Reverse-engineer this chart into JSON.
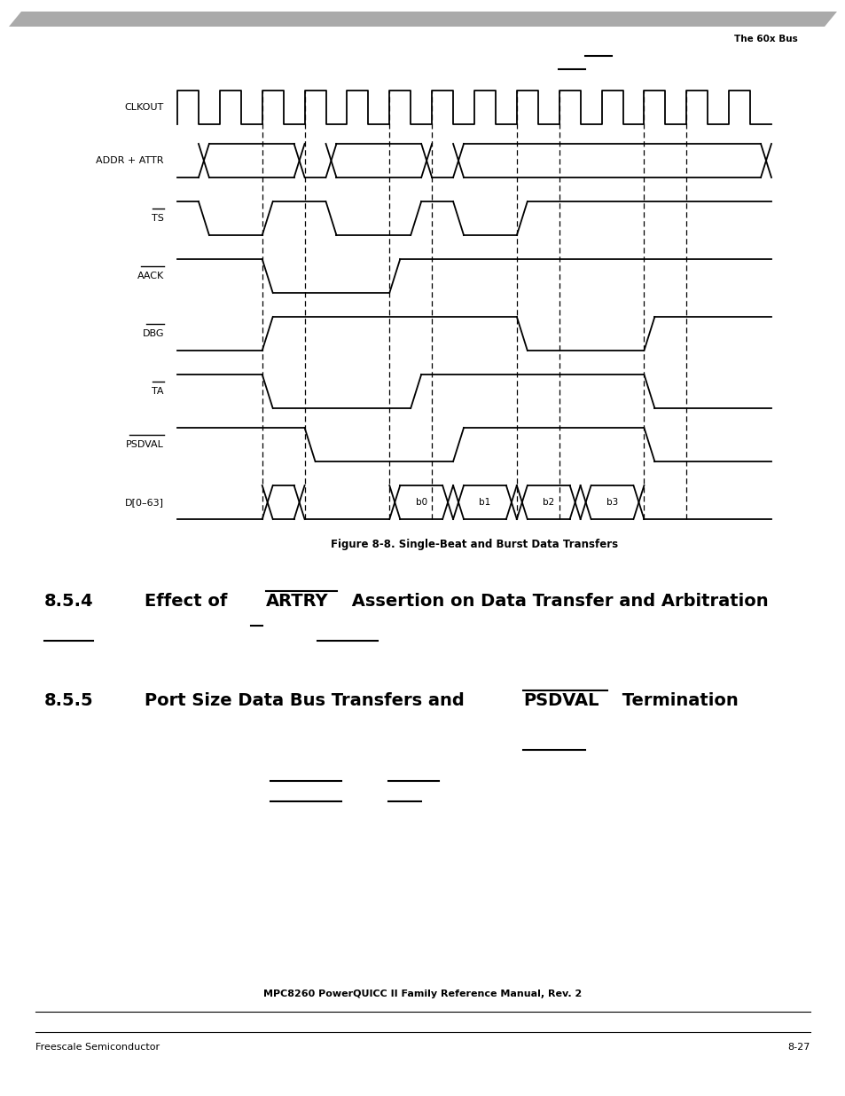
{
  "fig_width": 9.54,
  "fig_height": 12.35,
  "bg_color": "#ffffff",
  "header_text": "The 60x Bus",
  "title_text": "Figure 8-8. Single-Beat and Burst Data Transfers",
  "footer_center": "MPC8260 PowerQUICC II Family Reference Manual, Rev. 2",
  "footer_left": "Freescale Semiconductor",
  "footer_right": "8-27",
  "lw": 1.3
}
